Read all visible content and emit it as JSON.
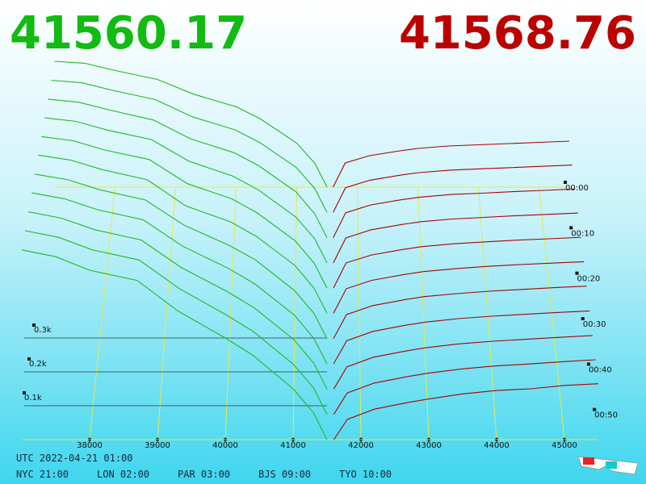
{
  "chart_data": {
    "type": "depth",
    "best_bid": 41560.17,
    "best_ask": 41568.76,
    "bid_color": "#22b822",
    "ask_color": "#a80000",
    "bid_prices": [
      37000,
      37500,
      38000,
      38700,
      39300,
      40000,
      40400,
      41000,
      41300,
      41500
    ],
    "ask_prices": [
      41600,
      41800,
      42200,
      42700,
      43000,
      43500,
      44000,
      44500,
      45000,
      45500
    ],
    "bid_depth": [
      [
        520,
        512,
        482,
        445,
        384,
        332,
        282,
        182,
        98,
        0
      ],
      [
        525,
        515,
        485,
        448,
        380,
        328,
        278,
        178,
        95,
        0
      ],
      [
        530,
        518,
        488,
        450,
        378,
        325,
        275,
        175,
        92,
        0
      ],
      [
        535,
        522,
        490,
        455,
        375,
        320,
        270,
        170,
        90,
        0
      ],
      [
        540,
        525,
        492,
        458,
        372,
        318,
        268,
        168,
        88,
        0
      ],
      [
        545,
        528,
        495,
        460,
        370,
        315,
        265,
        165,
        86,
        0
      ],
      [
        548,
        530,
        496,
        462,
        378,
        310,
        262,
        160,
        84,
        0
      ],
      [
        552,
        533,
        498,
        465,
        380,
        308,
        258,
        158,
        82,
        0
      ],
      [
        555,
        535,
        499,
        467,
        381,
        305,
        255,
        155,
        81,
        0
      ],
      [
        558,
        538,
        500,
        469,
        382,
        302,
        252,
        152,
        80,
        0
      ],
      [
        560,
        540,
        500,
        470,
        380,
        300,
        250,
        150,
        80,
        0
      ]
    ],
    "ask_depth": [
      [
        0,
        100,
        130,
        150,
        160,
        170,
        175,
        180,
        185,
        190
      ],
      [
        0,
        98,
        128,
        148,
        158,
        168,
        173,
        178,
        183,
        188
      ],
      [
        0,
        95,
        125,
        145,
        155,
        165,
        170,
        176,
        181,
        186
      ],
      [
        0,
        92,
        122,
        142,
        152,
        162,
        168,
        174,
        179,
        184
      ],
      [
        0,
        90,
        118,
        138,
        148,
        158,
        165,
        171,
        176,
        181
      ],
      [
        0,
        85,
        114,
        134,
        144,
        154,
        162,
        168,
        173,
        178
      ],
      [
        0,
        80,
        110,
        130,
        140,
        150,
        158,
        164,
        170,
        175
      ],
      [
        0,
        75,
        105,
        125,
        135,
        146,
        154,
        160,
        166,
        171
      ],
      [
        0,
        70,
        100,
        120,
        130,
        142,
        150,
        156,
        162,
        168
      ],
      [
        0,
        65,
        95,
        115,
        125,
        138,
        147,
        153,
        160,
        166
      ],
      [
        0,
        60,
        90,
        110,
        120,
        135,
        145,
        150,
        160,
        165
      ]
    ],
    "xticks": [
      38000,
      39000,
      40000,
      41000,
      42000,
      43000,
      44000,
      45000
    ],
    "zticks": [
      {
        "value": 100,
        "label": "0.1k"
      },
      {
        "value": 200,
        "label": "0.2k"
      },
      {
        "value": 300,
        "label": "0.3k"
      }
    ],
    "time_ticks": [
      "00:00",
      "00:10",
      "00:20",
      "00:30",
      "00:40",
      "00:50"
    ],
    "footer": {
      "utc": "UTC 2022-04-21 01:00",
      "clocks": [
        "NYC 21:00",
        "LON 02:00",
        "PAR 03:00",
        "BJS 09:00",
        "TYO 10:00"
      ]
    }
  }
}
